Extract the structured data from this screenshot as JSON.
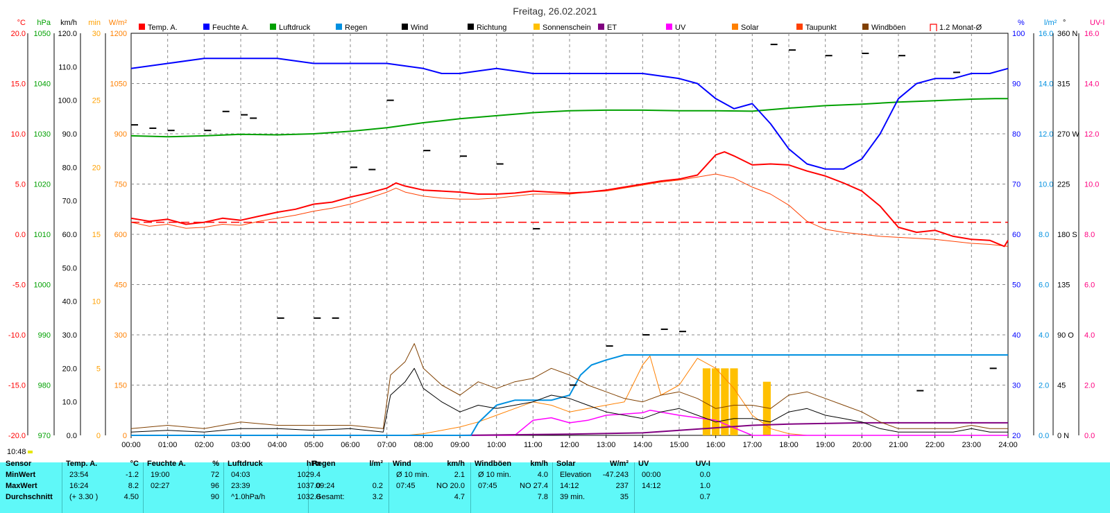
{
  "title": "Freitag, 26.02.2021",
  "current_time": "10:48",
  "legend": [
    {
      "label": "Temp. A.",
      "color": "#ff0000"
    },
    {
      "label": "Feuchte A.",
      "color": "#0000ff"
    },
    {
      "label": "Luftdruck",
      "color": "#00a000"
    },
    {
      "label": "Regen",
      "color": "#0090e0"
    },
    {
      "label": "Wind",
      "color": "#000000"
    },
    {
      "label": "Richtung",
      "color": "#000000"
    },
    {
      "label": "Sonnenschein",
      "color": "#ffc000"
    },
    {
      "label": "ET",
      "color": "#800080"
    },
    {
      "label": "UV",
      "color": "#ff00ff"
    },
    {
      "label": "Solar",
      "color": "#ff8000"
    },
    {
      "label": "Taupunkt",
      "color": "#ff4000"
    },
    {
      "label": "Windböen",
      "color": "#804000"
    },
    {
      "label": "1.2 Monat-Ø",
      "color": "#ff0000"
    }
  ],
  "axes": {
    "temp": {
      "unit": "°C",
      "color": "#ff0000",
      "ticks": [
        "20.0",
        "15.0",
        "10.0",
        "5.0",
        "0.0",
        "-5.0",
        "-10.0",
        "-15.0",
        "-20.0"
      ]
    },
    "pressure": {
      "unit": "hPa",
      "color": "#00a000",
      "ticks": [
        "1050",
        "1040",
        "1030",
        "1020",
        "1010",
        "1000",
        "990",
        "980",
        "970"
      ]
    },
    "wind": {
      "unit": "km/h",
      "color": "#000000",
      "ticks": [
        "120.0",
        "110.0",
        "100.0",
        "90.0",
        "80.0",
        "70.0",
        "60.0",
        "50.0",
        "40.0",
        "30.0",
        "20.0",
        "10.0",
        "0.0"
      ]
    },
    "sunmin": {
      "unit": "min",
      "color": "#ffa000",
      "ticks": [
        "30",
        "25",
        "20",
        "15",
        "10",
        "5",
        "0"
      ]
    },
    "solar": {
      "unit": "W/m²",
      "color": "#ff8000",
      "ticks": [
        "1200",
        "1050",
        "900",
        "750",
        "600",
        "450",
        "300",
        "150",
        "0"
      ]
    },
    "humidity": {
      "unit": "%",
      "color": "#0000ff",
      "ticks": [
        "100",
        "90",
        "80",
        "70",
        "60",
        "50",
        "40",
        "30",
        "20"
      ]
    },
    "rain": {
      "unit": "l/m²",
      "color": "#0090e0",
      "ticks": [
        "16.0",
        "14.0",
        "12.0",
        "10.0",
        "8.0",
        "6.0",
        "4.0",
        "2.0",
        "0.0"
      ]
    },
    "direction": {
      "unit": "°",
      "color": "#000000",
      "ticks": [
        "360 N",
        "315",
        "270 W",
        "225",
        "180 S",
        "135",
        "90 O",
        "45",
        "0 N"
      ]
    },
    "uv": {
      "unit": "UV-I",
      "color": "#ff0080",
      "ticks": [
        "16.0",
        "14.0",
        "12.0",
        "10.0",
        "8.0",
        "6.0",
        "4.0",
        "2.0",
        "0.0"
      ]
    }
  },
  "x_ticks": [
    "00:00",
    "01:00",
    "02:00",
    "03:00",
    "04:00",
    "05:00",
    "06:00",
    "07:00",
    "08:00",
    "09:00",
    "10:00",
    "11:00",
    "12:00",
    "13:00",
    "14:00",
    "15:00",
    "16:00",
    "17:00",
    "18:00",
    "19:00",
    "20:00",
    "21:00",
    "22:00",
    "23:00",
    "24:00"
  ],
  "chart_data": {
    "type": "line",
    "title": "Freitag, 26.02.2021",
    "x_unit": "hours",
    "xlim": [
      0,
      24
    ],
    "series": [
      {
        "name": "Temp. A.",
        "unit": "°C",
        "color": "#ff0000",
        "x": [
          0,
          0.5,
          1,
          1.5,
          2,
          2.5,
          3,
          3.5,
          4,
          4.5,
          5,
          5.5,
          6,
          6.5,
          7,
          7.25,
          7.5,
          8,
          8.5,
          9,
          9.5,
          10,
          10.5,
          11,
          11.5,
          12,
          12.5,
          13,
          13.5,
          14,
          14.5,
          15,
          15.5,
          16,
          16.24,
          16.5,
          17,
          17.5,
          18,
          18.5,
          19,
          19.5,
          20,
          20.5,
          21,
          21.5,
          22,
          22.5,
          23,
          23.5,
          23.9,
          24
        ],
        "y": [
          1.6,
          1.3,
          1.5,
          1.0,
          1.2,
          1.6,
          1.4,
          1.8,
          2.2,
          2.5,
          3.0,
          3.2,
          3.7,
          4.1,
          4.6,
          5.1,
          4.8,
          4.4,
          4.3,
          4.2,
          4.0,
          4.0,
          4.1,
          4.3,
          4.2,
          4.1,
          4.2,
          4.4,
          4.7,
          5.0,
          5.3,
          5.5,
          5.9,
          7.9,
          8.2,
          7.8,
          6.9,
          7.0,
          6.9,
          6.3,
          5.8,
          5.1,
          4.3,
          2.8,
          0.7,
          0.2,
          0.4,
          -0.2,
          -0.5,
          -0.6,
          -1.2,
          -0.6
        ]
      },
      {
        "name": "Taupunkt",
        "unit": "°C",
        "color": "#ff4000",
        "x": [
          0,
          0.5,
          1,
          1.5,
          2,
          2.5,
          3,
          3.5,
          4,
          4.5,
          5,
          5.5,
          6,
          6.5,
          7,
          7.25,
          7.5,
          8,
          8.5,
          9,
          9.5,
          10,
          10.5,
          11,
          11.5,
          12,
          12.5,
          13,
          13.5,
          14,
          14.5,
          15,
          15.5,
          16,
          16.5,
          17,
          17.5,
          18,
          18.5,
          19,
          19.5,
          20,
          20.5,
          21,
          21.5,
          22,
          22.5,
          23,
          23.5,
          24
        ],
        "y": [
          1.2,
          0.8,
          1.0,
          0.6,
          0.7,
          1.0,
          0.9,
          1.3,
          1.6,
          1.9,
          2.3,
          2.6,
          3.0,
          3.6,
          4.2,
          4.6,
          4.2,
          3.8,
          3.6,
          3.5,
          3.5,
          3.6,
          3.8,
          4.0,
          4.0,
          4.0,
          4.2,
          4.3,
          4.6,
          4.9,
          5.2,
          5.4,
          5.7,
          6.0,
          5.6,
          4.7,
          4.0,
          2.9,
          1.3,
          0.5,
          0.2,
          0.0,
          -0.2,
          -0.3,
          -0.4,
          -0.5,
          -0.7,
          -0.9,
          -1.0,
          -1.2
        ]
      },
      {
        "name": "Feuchte A.",
        "unit": "%",
        "color": "#0000ff",
        "x": [
          0,
          1,
          2,
          3,
          4,
          5,
          6,
          7,
          8,
          8.5,
          9,
          10,
          11,
          12,
          13,
          14,
          15,
          15.5,
          16,
          16.5,
          17,
          17.5,
          18,
          18.5,
          19,
          19.5,
          20,
          20.5,
          21,
          21.5,
          22,
          22.5,
          23,
          23.5,
          24
        ],
        "y": [
          93,
          94,
          95,
          95,
          95,
          94,
          94,
          94,
          93,
          92,
          92,
          93,
          92,
          92,
          92,
          92,
          91,
          90,
          87,
          85,
          86,
          82,
          77,
          74,
          73,
          73,
          75,
          80,
          87,
          90,
          91,
          91,
          92,
          92,
          93
        ]
      },
      {
        "name": "Luftdruck",
        "unit": "hPa",
        "color": "#00a000",
        "x": [
          0,
          1,
          2,
          3,
          4,
          5,
          6,
          7,
          8,
          9,
          10,
          11,
          12,
          13,
          14,
          15,
          16,
          17,
          18,
          19,
          20,
          21,
          22,
          23,
          23.65,
          24
        ],
        "y": [
          1029.6,
          1029.4,
          1029.6,
          1029.9,
          1029.8,
          1030.0,
          1030.5,
          1031.2,
          1032.2,
          1033.0,
          1033.6,
          1034.2,
          1034.6,
          1034.7,
          1034.7,
          1034.6,
          1034.6,
          1034.5,
          1035.1,
          1035.6,
          1035.9,
          1036.3,
          1036.6,
          1036.9,
          1037.0,
          1037.0
        ]
      },
      {
        "name": "Wind",
        "unit": "km/h",
        "color": "#000000",
        "x": [
          0,
          1,
          2,
          3,
          4,
          5,
          6,
          6.9,
          7.1,
          7.5,
          7.75,
          8,
          8.5,
          9,
          9.5,
          10,
          10.5,
          11,
          11.5,
          12,
          12.5,
          13,
          13.5,
          14,
          14.5,
          15,
          15.5,
          16,
          16.5,
          17,
          17.5,
          18,
          18.5,
          19,
          19.5,
          20,
          20.5,
          21,
          21.5,
          22,
          22.5,
          23,
          23.5,
          24
        ],
        "y": [
          1.0,
          1.5,
          1.0,
          2.0,
          2.0,
          1.5,
          2.0,
          1.0,
          12.0,
          16.0,
          20.0,
          14.0,
          10.0,
          7.0,
          9.0,
          8.0,
          9.0,
          10.0,
          12.0,
          11.0,
          9.0,
          7.0,
          6.0,
          5.0,
          7.0,
          8.0,
          6.0,
          4.0,
          5.0,
          5.0,
          4.0,
          7.0,
          8.0,
          6.0,
          5.0,
          4.0,
          2.0,
          1.0,
          1.0,
          1.0,
          1.0,
          2.0,
          1.0,
          1.0
        ]
      },
      {
        "name": "Windböen",
        "unit": "km/h",
        "color": "#804000",
        "x": [
          0,
          1,
          2,
          3,
          4,
          5,
          6,
          6.9,
          7.1,
          7.5,
          7.75,
          8,
          8.5,
          9,
          9.5,
          10,
          10.5,
          11,
          11.5,
          12,
          12.5,
          13,
          13.5,
          14,
          14.5,
          15,
          15.5,
          16,
          16.5,
          17,
          17.5,
          18,
          18.5,
          19,
          19.5,
          20,
          20.5,
          21,
          21.5,
          22,
          22.5,
          23,
          23.5,
          24
        ],
        "y": [
          2.0,
          3.0,
          2.0,
          4.0,
          3.0,
          3.0,
          3.0,
          2.0,
          18.0,
          22.0,
          27.4,
          20.0,
          15.0,
          12.0,
          16.0,
          14.0,
          16.0,
          17.0,
          20.0,
          18.0,
          15.0,
          13.0,
          11.0,
          10.0,
          12.0,
          13.0,
          11.0,
          8.0,
          9.0,
          9.0,
          8.0,
          12.0,
          13.0,
          11.0,
          9.0,
          7.0,
          4.0,
          2.0,
          2.0,
          2.0,
          2.0,
          3.0,
          2.0,
          2.0
        ]
      },
      {
        "name": "Regen",
        "unit": "l/m²",
        "color": "#0090e0",
        "x": [
          0,
          9.3,
          9.5,
          10,
          10.5,
          11,
          11.5,
          12,
          12.3,
          12.6,
          13,
          13.5,
          14,
          18,
          20,
          22,
          24
        ],
        "y": [
          0,
          0,
          0.5,
          1.2,
          1.4,
          1.4,
          1.4,
          1.6,
          2.4,
          2.8,
          3.0,
          3.2,
          3.2,
          3.2,
          3.2,
          3.2,
          3.2
        ]
      },
      {
        "name": "Solar",
        "unit": "W/m²",
        "color": "#ff8000",
        "x": [
          0,
          7.5,
          8,
          8.5,
          9,
          9.5,
          10,
          10.5,
          11,
          11.5,
          12,
          12.5,
          13,
          13.5,
          14,
          14.2,
          14.5,
          15,
          15.5,
          16,
          16.5,
          17,
          17.5,
          18,
          18.5,
          24
        ],
        "y": [
          0,
          0,
          5,
          15,
          25,
          40,
          60,
          80,
          100,
          90,
          70,
          80,
          90,
          100,
          210,
          237,
          120,
          150,
          230,
          200,
          140,
          60,
          20,
          5,
          0,
          0
        ]
      },
      {
        "name": "UV",
        "unit": "UV-I",
        "color": "#ff00ff",
        "x": [
          0,
          10.5,
          11,
          11.5,
          12,
          12.5,
          13,
          14,
          14.2,
          15,
          16,
          16.5,
          17,
          24
        ],
        "y": [
          0,
          0,
          0.6,
          0.7,
          0.5,
          0.6,
          0.8,
          0.9,
          1.0,
          0.8,
          0.6,
          0.3,
          0,
          0
        ]
      },
      {
        "name": "ET",
        "unit": "l/m²",
        "color": "#800080",
        "x": [
          0,
          9,
          12,
          14,
          15,
          16,
          17,
          18,
          20,
          22,
          24
        ],
        "y": [
          0,
          0,
          0.05,
          0.1,
          0.2,
          0.3,
          0.4,
          0.45,
          0.5,
          0.5,
          0.5
        ]
      },
      {
        "name": "Sonnenschein",
        "unit": "min",
        "color": "#ffc000",
        "x": [
          15.75,
          16.0,
          16.25,
          16.5,
          17.4
        ],
        "y": [
          5,
          5,
          5,
          5,
          4
        ]
      },
      {
        "name": "Richtung",
        "unit": "°",
        "color": "#000000",
        "x": [
          0,
          0.5,
          1,
          2,
          2.5,
          3,
          3.25,
          4,
          5,
          5.5,
          6,
          6.5,
          7,
          8,
          9,
          10,
          11,
          12,
          13,
          14,
          14.5,
          15,
          17.5,
          18,
          19,
          20,
          21,
          21.5,
          22.5,
          23.5
        ],
        "y": [
          278,
          275,
          273,
          273,
          290,
          287,
          284,
          105,
          105,
          105,
          240,
          238,
          300,
          255,
          250,
          243,
          185,
          45,
          80,
          90,
          95,
          93,
          350,
          345,
          340,
          342,
          340,
          40,
          325,
          60
        ]
      },
      {
        "name": "1.2 Monat-Ø",
        "unit": "°C",
        "color": "#ff0000",
        "x": [
          0,
          24
        ],
        "y": [
          1.2,
          1.2
        ]
      }
    ],
    "ylim": {
      "temp": [
        -20,
        20
      ],
      "pressure": [
        970,
        1050
      ],
      "wind": [
        0,
        120
      ],
      "humidity": [
        20,
        100
      ],
      "rain": [
        0,
        16
      ],
      "solar": [
        0,
        1200
      ],
      "uv": [
        0,
        16
      ],
      "direction": [
        0,
        360
      ],
      "sunmin": [
        0,
        30
      ]
    }
  },
  "summary": {
    "headers": [
      {
        "label": "Sensor",
        "unit": ""
      },
      {
        "label": "Temp. A.",
        "unit": "°C"
      },
      {
        "label": "Feuchte A.",
        "unit": "%"
      },
      {
        "label": "Luftdruck",
        "unit": "hPa"
      },
      {
        "label": "Regen",
        "unit": "l/m²"
      },
      {
        "label": "Wind",
        "unit": "km/h"
      },
      {
        "label": "Windböen",
        "unit": "km/h"
      },
      {
        "label": "Solar",
        "unit": "W/m²"
      },
      {
        "label": "UV",
        "unit": "UV-I"
      }
    ],
    "row_labels": [
      "MinWert",
      "MaxWert",
      "Durchschnitt"
    ],
    "temp": [
      [
        "23:54",
        "-1.2"
      ],
      [
        "16:24",
        "8.2"
      ],
      [
        "(+ 3.30 )",
        "4.50"
      ]
    ],
    "humidity": [
      [
        "19:00",
        "72"
      ],
      [
        "02:27",
        "96"
      ],
      [
        "",
        "90"
      ]
    ],
    "pressure": [
      [
        "04:03",
        "1029.4"
      ],
      [
        "23:39",
        "1037.0"
      ],
      [
        "^1.0hPa/h",
        "1032.8"
      ]
    ],
    "rain": [
      [
        "",
        ""
      ],
      [
        "09:24",
        "0.2"
      ],
      [
        "Gesamt:",
        "3.2"
      ]
    ],
    "wind": [
      [
        "Ø 10 min.",
        "2.1"
      ],
      [
        "07:45",
        "NO 20.0"
      ],
      [
        "",
        "4.7"
      ]
    ],
    "gust": [
      [
        "Ø 10 min.",
        "4.0"
      ],
      [
        "07:45",
        "NO 27.4"
      ],
      [
        "",
        "7.8"
      ]
    ],
    "solar": [
      [
        "Elevation",
        "-47.243"
      ],
      [
        "14:12",
        "237"
      ],
      [
        "39 min.",
        "35"
      ]
    ],
    "uv": [
      [
        "00:00",
        "0.0"
      ],
      [
        "14:12",
        "1.0"
      ],
      [
        "",
        "0.7"
      ]
    ]
  }
}
